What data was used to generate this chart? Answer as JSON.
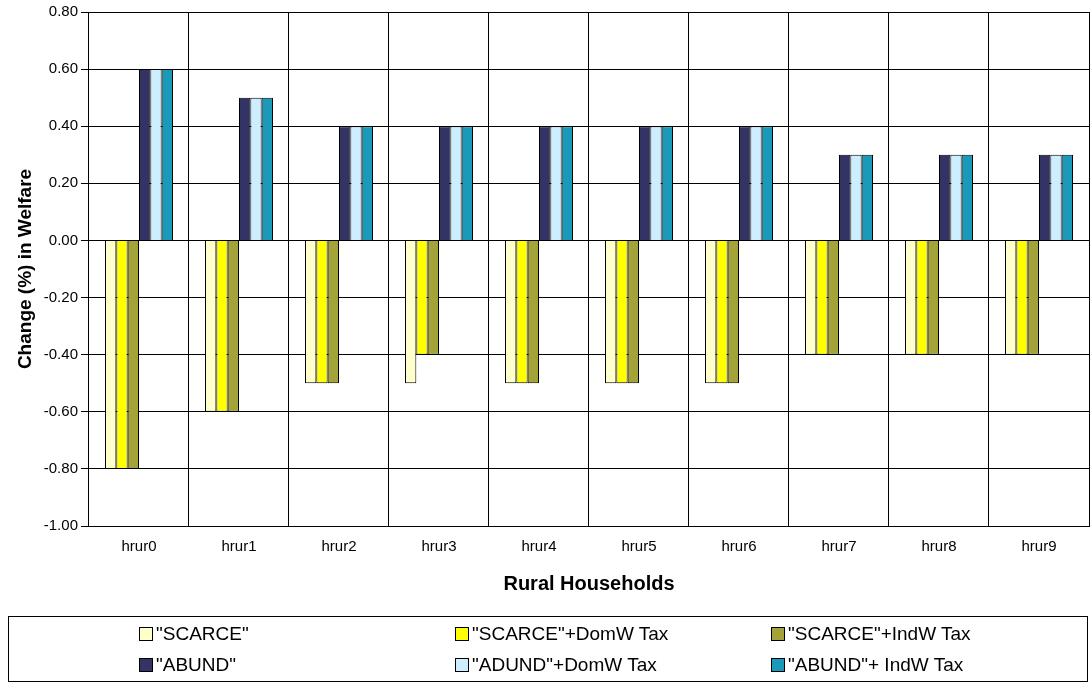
{
  "chart_data": {
    "type": "bar",
    "xlabel": "Rural Households",
    "ylabel": "Change (%) in Welfare",
    "categories": [
      "hrur0",
      "hrur1",
      "hrur2",
      "hrur3",
      "hrur4",
      "hrur5",
      "hrur6",
      "hrur7",
      "hrur8",
      "hrur9"
    ],
    "series": [
      {
        "name": "\"SCARCE\"",
        "color": "#ffffcc",
        "values": [
          -0.8,
          -0.6,
          -0.5,
          -0.5,
          -0.5,
          -0.5,
          -0.5,
          -0.4,
          -0.4,
          -0.4
        ]
      },
      {
        "name": "\"SCARCE\"+DomW Tax",
        "color": "#ffff00",
        "values": [
          -0.8,
          -0.6,
          -0.5,
          -0.4,
          -0.5,
          -0.5,
          -0.5,
          -0.4,
          -0.4,
          -0.4
        ]
      },
      {
        "name": "\"SCARCE\"+IndW Tax",
        "color": "#a3a33a",
        "values": [
          -0.8,
          -0.6,
          -0.5,
          -0.4,
          -0.5,
          -0.5,
          -0.5,
          -0.4,
          -0.4,
          -0.4
        ]
      },
      {
        "name": "\"ABUND\"",
        "color": "#333366",
        "values": [
          0.6,
          0.5,
          0.4,
          0.4,
          0.4,
          0.4,
          0.4,
          0.3,
          0.3,
          0.3
        ]
      },
      {
        "name": "\"ADUND\"+DomW Tax",
        "color": "#cceeff",
        "values": [
          0.6,
          0.5,
          0.4,
          0.4,
          0.4,
          0.4,
          0.4,
          0.3,
          0.3,
          0.3
        ]
      },
      {
        "name": "\"ABUND\"+ IndW Tax",
        "color": "#1a9ab8",
        "values": [
          0.6,
          0.5,
          0.4,
          0.4,
          0.4,
          0.4,
          0.4,
          0.3,
          0.3,
          0.3
        ]
      }
    ],
    "ylim": [
      -1.0,
      0.8
    ],
    "yticks": [
      {
        "value": -1.0,
        "label": "-1.00"
      },
      {
        "value": -0.8,
        "label": "-0.80"
      },
      {
        "value": -0.6,
        "label": "-0.60"
      },
      {
        "value": -0.4,
        "label": "-0.40"
      },
      {
        "value": -0.2,
        "label": "-0.20"
      },
      {
        "value": 0,
        "label": "0.00"
      },
      {
        "value": 0.2,
        "label": "0.20"
      },
      {
        "value": 0.4,
        "label": "0.40"
      },
      {
        "value": 0.6,
        "label": "0.60"
      },
      {
        "value": 0.8,
        "label": "0.80"
      }
    ],
    "grid": true,
    "legend": "bottom"
  }
}
